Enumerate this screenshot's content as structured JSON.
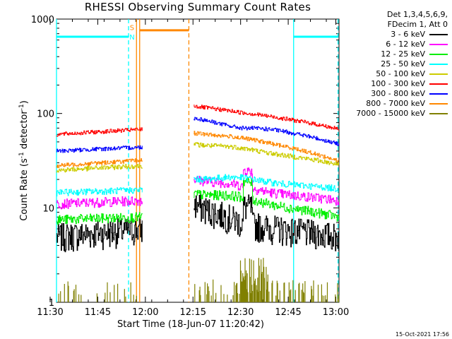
{
  "chart_data": {
    "type": "line",
    "title": "RHESSI Observing Summary Count Rates",
    "xlabel": "Start Time (18-Jun-07 11:20:42)",
    "ylabel_parts": [
      "Count Rate (s",
      "-1",
      " detector",
      "-1",
      ")"
    ],
    "yscale": "log",
    "ylim": [
      1,
      1000
    ],
    "xlim_minutes": [
      11.3,
      100.3
    ],
    "yticks": [
      {
        "value": 1,
        "label": "1"
      },
      {
        "value": 10,
        "label": "10"
      },
      {
        "value": 100,
        "label": "100"
      },
      {
        "value": 1000,
        "label": "1000"
      }
    ],
    "xticks": [
      {
        "minute": 9.3,
        "label": "11:30"
      },
      {
        "minute": 24.3,
        "label": "11:45"
      },
      {
        "minute": 39.3,
        "label": "12:00"
      },
      {
        "minute": 54.3,
        "label": "12:15"
      },
      {
        "minute": 69.3,
        "label": "12:30"
      },
      {
        "minute": 84.3,
        "label": "12:45"
      },
      {
        "minute": 99.3,
        "label": "13:00"
      }
    ],
    "legend_header": [
      "Det 1,3,4,5,6,9,",
      "FDecim 1, Att 0"
    ],
    "series": [
      {
        "name": "3 - 6 keV",
        "color": "#000000",
        "seg1": [
          5.0,
          6.0
        ],
        "seg2": [
          11.0,
          6.5,
          7.0,
          5.0
        ],
        "noise": 0.35
      },
      {
        "name": "6 - 12 keV",
        "color": "#ff00ff",
        "seg1": [
          11.0,
          12.0
        ],
        "seg2": [
          20.0,
          15.0,
          17.0,
          12.0
        ],
        "noise": 0.12
      },
      {
        "name": "12 - 25 keV",
        "color": "#00ee00",
        "seg1": [
          7.5,
          8.0
        ],
        "seg2": [
          14.0,
          11.5,
          13.0,
          8.0
        ],
        "noise": 0.12
      },
      {
        "name": "25 - 50 keV",
        "color": "#00ffff",
        "seg1": [
          14.5,
          15.5
        ],
        "seg2": [
          20.0,
          19.0,
          21.0,
          16.0
        ],
        "noise": 0.08
      },
      {
        "name": "50 - 100 keV",
        "color": "#cccc00",
        "seg1": [
          25.0,
          28.0
        ],
        "seg2": [
          47.0,
          40.0,
          43.0,
          29.0
        ],
        "noise": 0.06
      },
      {
        "name": "100 - 300 keV",
        "color": "#ff0000",
        "seg1": [
          60.0,
          68.0
        ],
        "seg2": [
          120.0,
          100.0,
          102.0,
          68.0
        ],
        "noise": 0.05
      },
      {
        "name": "300 - 800 keV",
        "color": "#0000ff",
        "seg1": [
          40.0,
          44.0
        ],
        "seg2": [
          90.0,
          75.0,
          70.0,
          47.0
        ],
        "noise": 0.05
      },
      {
        "name": "800 - 7000 keV",
        "color": "#ff8800",
        "seg1": [
          28.0,
          32.0
        ],
        "seg2": [
          62.0,
          53.0,
          55.0,
          31.0
        ],
        "noise": 0.05
      },
      {
        "name": "7000 - 15000 keV",
        "color": "#808000",
        "seg1": [
          1.0,
          1.0
        ],
        "seg2": [
          1.0,
          1.0,
          1.0,
          1.0
        ],
        "noise": 0.0
      }
    ],
    "segments_minutes": {
      "seg1": [
        11.3,
        38.3
      ],
      "seg2": [
        54.5,
        100.3
      ]
    },
    "vertical_markers": [
      {
        "minute": 11.3,
        "color": "#00ffff",
        "style": "solid"
      },
      {
        "minute": 34.0,
        "color": "#00ffff",
        "style": "dashed"
      },
      {
        "minute": 36.5,
        "color": "#ff8800",
        "style": "solid"
      },
      {
        "minute": 37.5,
        "color": "#ff8800",
        "style": "solid"
      },
      {
        "minute": 53.0,
        "color": "#ff8800",
        "style": "dashed"
      },
      {
        "minute": 86.0,
        "color": "#00ffff",
        "style": "solid"
      },
      {
        "minute": 100.0,
        "color": "#00ffff",
        "style": "dashed"
      }
    ],
    "horizontal_bars": [
      {
        "from": 11.3,
        "to": 34.0,
        "value": 650,
        "color": "#00ffff"
      },
      {
        "from": 37.5,
        "to": 53.0,
        "value": 760,
        "color": "#ff8800"
      },
      {
        "from": 86.0,
        "to": 100.0,
        "value": 650,
        "color": "#00ffff"
      }
    ],
    "markers_text": [
      {
        "text": "S",
        "color": "#ff8800",
        "minute": 35.1,
        "value": 820
      },
      {
        "text": "N",
        "color": "#00ffff",
        "minute": 35.1,
        "value": 650
      }
    ],
    "annotation_date": "15-Oct-2021 17:56"
  }
}
